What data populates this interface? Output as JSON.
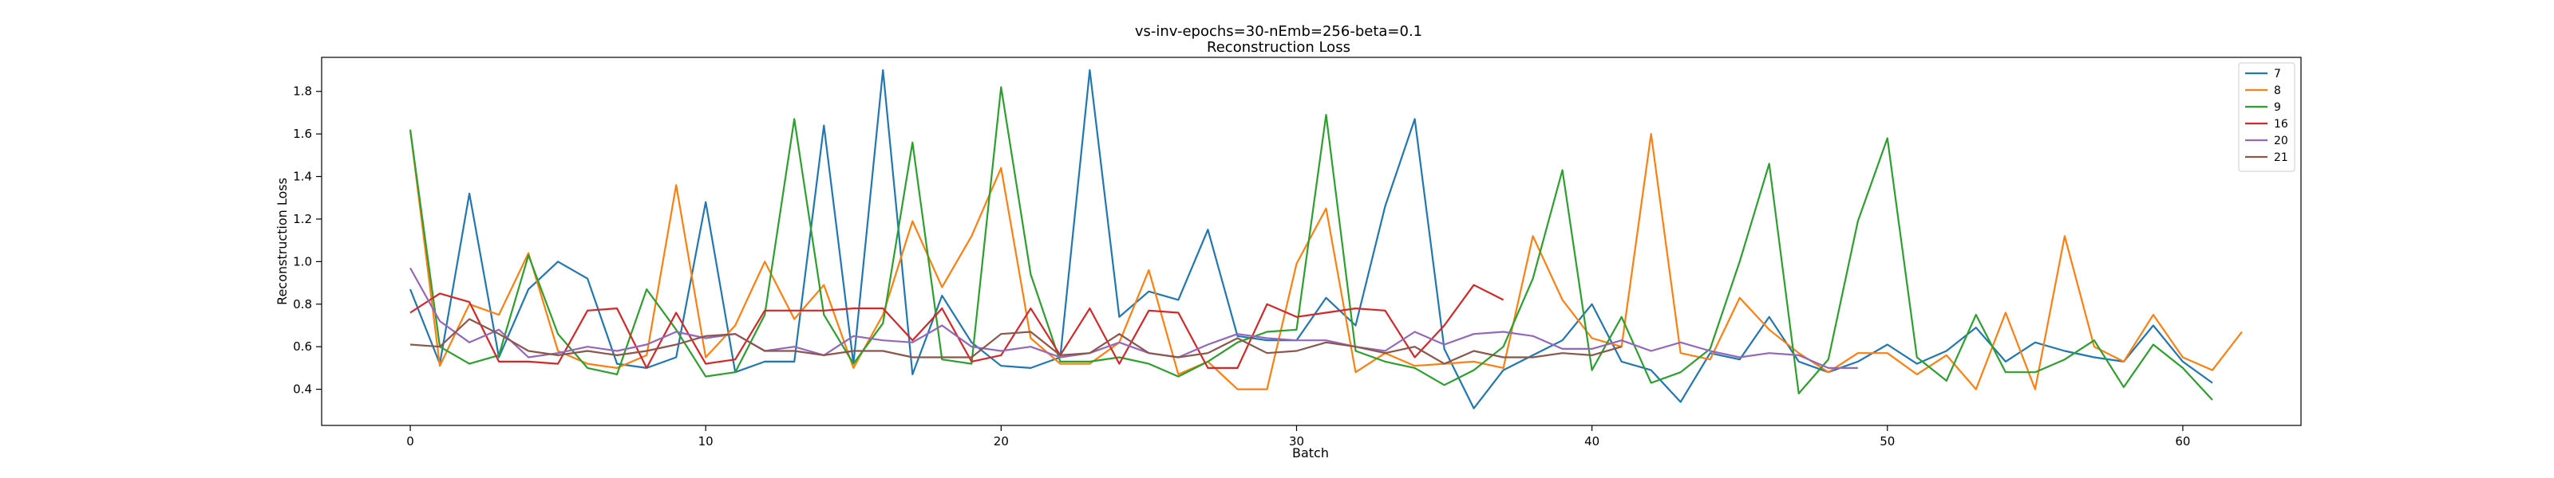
{
  "chart_data": {
    "type": "line",
    "title": "vs-inv-epochs=30-nEmb=256-beta=0.1",
    "subtitle": "Reconstruction Loss",
    "xlabel": "Batch",
    "ylabel": "Reconstruction Loss",
    "xlim": [
      -3,
      64
    ],
    "ylim": [
      0.23,
      1.96
    ],
    "xticks": [
      0,
      10,
      20,
      30,
      40,
      50,
      60
    ],
    "yticks": [
      0.4,
      0.6,
      0.8,
      1.0,
      1.2,
      1.4,
      1.6,
      1.8
    ],
    "grid": false,
    "legend_position": "top-right",
    "series": [
      {
        "name": "7",
        "color": "#1f77b4",
        "values": [
          0.87,
          0.52,
          1.32,
          0.55,
          0.87,
          1.0,
          0.92,
          0.52,
          0.5,
          0.55,
          1.28,
          0.48,
          0.53,
          0.53,
          1.64,
          0.52,
          1.9,
          0.47,
          0.84,
          0.62,
          0.51,
          0.5,
          0.55,
          1.9,
          0.74,
          0.86,
          0.82,
          1.15,
          0.65,
          0.63,
          0.63,
          0.83,
          0.7,
          1.26,
          1.67,
          0.59,
          0.31,
          0.49,
          0.56,
          0.63,
          0.8,
          0.53,
          0.49,
          0.34,
          0.57,
          0.54,
          0.74,
          0.53,
          0.48,
          0.53,
          0.61,
          0.52,
          0.58,
          0.69,
          0.53,
          0.62,
          0.58,
          0.55,
          0.53,
          0.7,
          0.53,
          0.43
        ]
      },
      {
        "name": "8",
        "color": "#ff7f0e",
        "values": [
          1.62,
          0.51,
          0.8,
          0.75,
          1.04,
          0.58,
          0.52,
          0.5,
          0.56,
          1.36,
          0.55,
          0.7,
          1.0,
          0.73,
          0.89,
          0.5,
          0.75,
          1.19,
          0.88,
          1.12,
          1.44,
          0.64,
          0.52,
          0.52,
          0.62,
          0.96,
          0.47,
          0.53,
          0.4,
          0.4,
          0.99,
          1.25,
          0.48,
          0.57,
          0.51,
          0.52,
          0.53,
          0.5,
          1.12,
          0.82,
          0.64,
          0.6,
          1.6,
          0.57,
          0.54,
          0.83,
          0.68,
          0.57,
          0.48,
          0.57,
          0.57,
          0.47,
          0.56,
          0.4,
          0.76,
          0.4,
          1.12,
          0.6,
          0.53,
          0.75,
          0.55,
          0.49,
          0.67
        ]
      },
      {
        "name": "9",
        "color": "#2ca02c",
        "values": [
          1.62,
          0.6,
          0.52,
          0.56,
          1.03,
          0.66,
          0.5,
          0.47,
          0.87,
          0.68,
          0.46,
          0.48,
          0.75,
          1.67,
          0.75,
          0.52,
          0.71,
          1.56,
          0.54,
          0.52,
          1.82,
          0.94,
          0.53,
          0.53,
          0.55,
          0.52,
          0.46,
          0.53,
          0.62,
          0.67,
          0.68,
          1.69,
          0.58,
          0.53,
          0.5,
          0.42,
          0.49,
          0.6,
          0.92,
          1.43,
          0.49,
          0.74,
          0.43,
          0.48,
          0.59,
          1.0,
          1.46,
          0.38,
          0.54,
          1.19,
          1.58,
          0.55,
          0.44,
          0.75,
          0.48,
          0.48,
          0.54,
          0.63,
          0.41,
          0.61,
          0.5,
          0.35
        ]
      },
      {
        "name": "16",
        "color": "#d62728",
        "values": [
          0.76,
          0.85,
          0.81,
          0.53,
          0.53,
          0.52,
          0.77,
          0.78,
          0.5,
          0.76,
          0.52,
          0.54,
          0.77,
          0.77,
          0.77,
          0.78,
          0.78,
          0.63,
          0.78,
          0.53,
          0.56,
          0.78,
          0.56,
          0.78,
          0.52,
          0.77,
          0.76,
          0.5,
          0.5,
          0.8,
          0.74,
          0.76,
          0.78,
          0.77,
          0.55,
          0.7,
          0.89,
          0.82
        ]
      },
      {
        "name": "20",
        "color": "#9467bd",
        "values": [
          0.97,
          0.72,
          0.62,
          0.68,
          0.55,
          0.57,
          0.6,
          0.58,
          0.61,
          0.67,
          0.64,
          0.66,
          0.58,
          0.6,
          0.56,
          0.65,
          0.63,
          0.62,
          0.7,
          0.6,
          0.58,
          0.6,
          0.55,
          0.57,
          0.62,
          0.57,
          0.55,
          0.61,
          0.66,
          0.64,
          0.63,
          0.63,
          0.6,
          0.58,
          0.67,
          0.61,
          0.66,
          0.67,
          0.65,
          0.59,
          0.59,
          0.63,
          0.58,
          0.62,
          0.58,
          0.55,
          0.57,
          0.56,
          0.5,
          0.5
        ]
      },
      {
        "name": "21",
        "color": "#8c564b",
        "values": [
          0.61,
          0.6,
          0.73,
          0.66,
          0.58,
          0.56,
          0.58,
          0.56,
          0.58,
          0.61,
          0.65,
          0.66,
          0.58,
          0.58,
          0.56,
          0.58,
          0.58,
          0.55,
          0.55,
          0.55,
          0.66,
          0.67,
          0.56,
          0.57,
          0.66,
          0.57,
          0.55,
          0.57,
          0.64,
          0.57,
          0.58,
          0.62,
          0.6,
          0.57,
          0.6,
          0.52,
          0.58,
          0.55,
          0.55,
          0.57,
          0.56,
          0.6
        ]
      }
    ]
  }
}
